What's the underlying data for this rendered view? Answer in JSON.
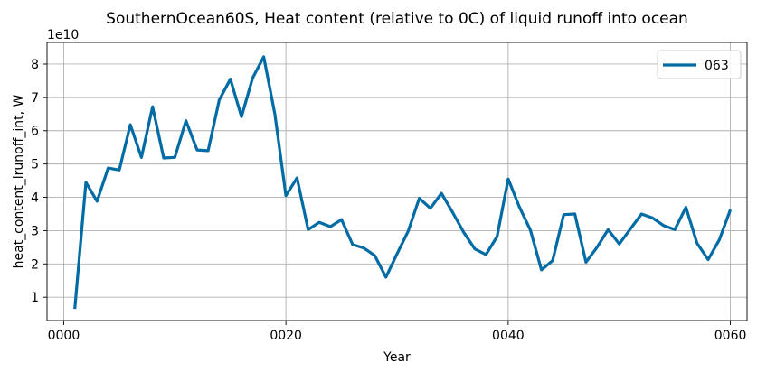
{
  "chart_data": {
    "type": "line",
    "title": "SouthernOcean60S, Heat content (relative to 0C) of liquid runoff into ocean",
    "xlabel": "Year",
    "ylabel": "heat_content_lrunoff_int, W",
    "y_scale_label": "1e10",
    "y_scale": 10000000000.0,
    "xlim": [
      -1.5,
      61.5
    ],
    "ylim": [
      0.3,
      8.65
    ],
    "x_ticks": [
      0,
      20,
      40,
      60
    ],
    "x_tick_labels": [
      "0000",
      "0020",
      "0040",
      "0060"
    ],
    "y_ticks": [
      1,
      2,
      3,
      4,
      5,
      6,
      7,
      8
    ],
    "y_tick_labels": [
      "1",
      "2",
      "3",
      "4",
      "5",
      "6",
      "7",
      "8"
    ],
    "grid": true,
    "legend_position": "top-right",
    "series": [
      {
        "name": "063",
        "color": "#006ba4",
        "x": [
          1,
          2,
          3,
          4,
          5,
          6,
          7,
          8,
          9,
          10,
          11,
          12,
          13,
          14,
          15,
          16,
          17,
          18,
          19,
          20,
          21,
          22,
          23,
          24,
          25,
          26,
          27,
          28,
          29,
          30,
          31,
          32,
          33,
          34,
          35,
          36,
          37,
          38,
          39,
          40,
          41,
          42,
          43,
          44,
          45,
          46,
          47,
          48,
          49,
          50,
          51,
          52,
          53,
          54,
          55,
          56,
          57,
          58,
          59,
          60
        ],
        "values": [
          0.65,
          4.45,
          3.88,
          4.88,
          4.82,
          6.18,
          5.2,
          6.72,
          5.18,
          5.2,
          6.3,
          5.42,
          5.4,
          6.92,
          7.55,
          6.42,
          7.58,
          8.22,
          6.5,
          4.05,
          4.58,
          3.03,
          3.25,
          3.12,
          3.33,
          2.58,
          2.48,
          2.25,
          1.6,
          2.3,
          2.98,
          3.97,
          3.67,
          4.12,
          3.55,
          2.95,
          2.45,
          2.28,
          2.82,
          4.55,
          3.72,
          3.02,
          1.82,
          2.1,
          3.48,
          3.5,
          2.05,
          2.5,
          3.03,
          2.6,
          3.05,
          3.5,
          3.38,
          3.15,
          3.03,
          3.7,
          2.62,
          2.13,
          2.72,
          3.63
        ]
      }
    ]
  }
}
